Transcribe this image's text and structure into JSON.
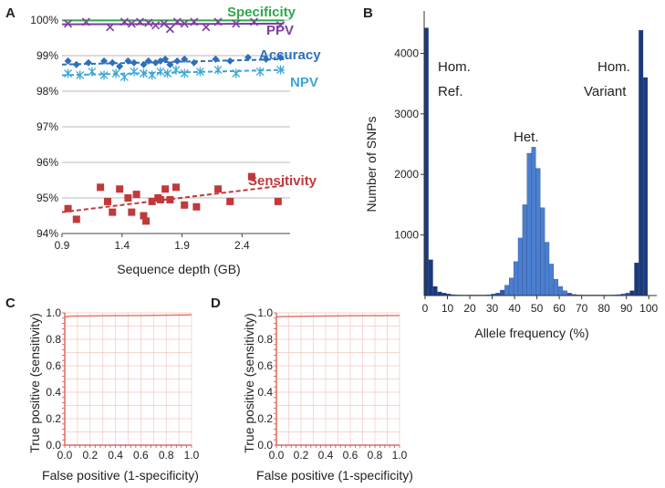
{
  "panel_letters": {
    "A": "A",
    "B": "B",
    "C": "C",
    "D": "D"
  },
  "colors": {
    "specificity": "#2ea84a",
    "ppv": "#7b3f9e",
    "accuracy": "#2f6fba",
    "npv": "#3ba7d6",
    "sensitivity": "#c0393b",
    "hist_dark": "#1b3a7a",
    "hist_mid": "#2c5aa8",
    "hist_light": "#4a7fd0",
    "roc": "#e07060",
    "roc_grid": "#f0c8c0",
    "roc_axis": "#d05050"
  },
  "chart_data": [
    {
      "id": "A",
      "type": "scatter",
      "xlabel": "Sequence depth (GB)",
      "ylabel": "",
      "xlim": [
        0.9,
        2.8
      ],
      "ylim": [
        94,
        100
      ],
      "xticks": [
        "0.9",
        "1.4",
        "1.9",
        "2.4"
      ],
      "yticks": [
        "94%",
        "95%",
        "96%",
        "97%",
        "98%",
        "99%",
        "100%"
      ],
      "series": [
        {
          "name": "Specificity",
          "marker": "none",
          "trend": [
            [
              0.9,
              99.99
            ],
            [
              2.75,
              99.99
            ]
          ],
          "x": [],
          "y": []
        },
        {
          "name": "PPV",
          "marker": "x",
          "trend": [
            [
              0.9,
              99.88
            ],
            [
              2.75,
              99.9
            ]
          ],
          "x": [
            0.95,
            1.1,
            1.3,
            1.42,
            1.48,
            1.55,
            1.62,
            1.68,
            1.75,
            1.8,
            1.86,
            1.92,
            2.0,
            2.1,
            2.2,
            2.35,
            2.5,
            2.72
          ],
          "y": [
            99.9,
            99.95,
            99.8,
            99.95,
            99.9,
            99.95,
            99.92,
            99.85,
            99.9,
            99.75,
            99.95,
            99.9,
            99.95,
            99.8,
            99.95,
            99.9,
            99.95,
            99.85
          ]
        },
        {
          "name": "Accuracy",
          "marker": "diamond",
          "trend": [
            [
              0.9,
              98.75
            ],
            [
              2.75,
              98.9
            ]
          ],
          "x": [
            0.95,
            1.02,
            1.12,
            1.25,
            1.32,
            1.38,
            1.45,
            1.5,
            1.58,
            1.62,
            1.68,
            1.72,
            1.76,
            1.8,
            1.86,
            1.92,
            2.0,
            2.18,
            2.3,
            2.45,
            2.6,
            2.72
          ],
          "y": [
            98.85,
            98.75,
            98.8,
            98.85,
            98.8,
            98.7,
            98.85,
            98.8,
            98.75,
            98.85,
            98.8,
            98.85,
            98.9,
            98.75,
            98.85,
            98.9,
            98.8,
            98.9,
            98.85,
            98.95,
            98.9,
            98.95
          ]
        },
        {
          "name": "NPV",
          "marker": "star",
          "trend": [
            [
              0.9,
              98.45
            ],
            [
              2.75,
              98.6
            ]
          ],
          "x": [
            0.95,
            1.05,
            1.15,
            1.25,
            1.35,
            1.42,
            1.5,
            1.58,
            1.65,
            1.72,
            1.78,
            1.85,
            1.92,
            2.05,
            2.2,
            2.35,
            2.55,
            2.72
          ],
          "y": [
            98.5,
            98.45,
            98.55,
            98.45,
            98.5,
            98.4,
            98.55,
            98.5,
            98.45,
            98.55,
            98.5,
            98.6,
            98.5,
            98.55,
            98.6,
            98.5,
            98.55,
            98.6
          ]
        },
        {
          "name": "Sensitivity",
          "marker": "square",
          "trend": [
            [
              0.9,
              94.6
            ],
            [
              2.75,
              95.35
            ]
          ],
          "x": [
            0.95,
            1.02,
            1.22,
            1.28,
            1.32,
            1.38,
            1.45,
            1.48,
            1.52,
            1.58,
            1.6,
            1.65,
            1.7,
            1.72,
            1.76,
            1.8,
            1.85,
            1.92,
            2.02,
            2.2,
            2.3,
            2.48,
            2.7
          ],
          "y": [
            94.7,
            94.4,
            95.3,
            94.9,
            94.6,
            95.25,
            95.0,
            94.6,
            95.1,
            94.5,
            94.35,
            94.9,
            95.0,
            94.95,
            95.25,
            94.95,
            95.3,
            94.8,
            94.75,
            95.25,
            94.9,
            95.6,
            94.9
          ]
        }
      ],
      "labels": {
        "specificity": "Specificity",
        "ppv": "PPV",
        "accuracy": "Accuracy",
        "npv": "NPV",
        "sensitivity": "Sensitivity"
      }
    },
    {
      "id": "B",
      "type": "bar",
      "xlabel": "Allele frequency (%)",
      "ylabel": "Number of SNPs",
      "xlim": [
        0,
        104
      ],
      "ylim": [
        0,
        4700
      ],
      "yticks": [
        1000,
        2000,
        3000,
        4000
      ],
      "xticks": [
        "0",
        "10",
        "20",
        "30",
        "40",
        "50",
        "60",
        "70",
        "80",
        "90",
        "100"
      ],
      "bin_width": 2,
      "bins": [
        {
          "x": 0,
          "value": 4420
        },
        {
          "x": 2,
          "value": 590
        },
        {
          "x": 4,
          "value": 150
        },
        {
          "x": 6,
          "value": 60
        },
        {
          "x": 8,
          "value": 40
        },
        {
          "x": 10,
          "value": 25
        },
        {
          "x": 12,
          "value": 15
        },
        {
          "x": 14,
          "value": 10
        },
        {
          "x": 16,
          "value": 8
        },
        {
          "x": 18,
          "value": 6
        },
        {
          "x": 20,
          "value": 5
        },
        {
          "x": 22,
          "value": 5
        },
        {
          "x": 24,
          "value": 6
        },
        {
          "x": 26,
          "value": 8
        },
        {
          "x": 28,
          "value": 12
        },
        {
          "x": 30,
          "value": 25
        },
        {
          "x": 32,
          "value": 40
        },
        {
          "x": 34,
          "value": 90
        },
        {
          "x": 36,
          "value": 170
        },
        {
          "x": 38,
          "value": 290
        },
        {
          "x": 40,
          "value": 560
        },
        {
          "x": 42,
          "value": 950
        },
        {
          "x": 44,
          "value": 1500
        },
        {
          "x": 46,
          "value": 2350
        },
        {
          "x": 48,
          "value": 2450
        },
        {
          "x": 50,
          "value": 2100
        },
        {
          "x": 52,
          "value": 1450
        },
        {
          "x": 54,
          "value": 880
        },
        {
          "x": 56,
          "value": 520
        },
        {
          "x": 58,
          "value": 270
        },
        {
          "x": 60,
          "value": 150
        },
        {
          "x": 62,
          "value": 80
        },
        {
          "x": 64,
          "value": 40
        },
        {
          "x": 66,
          "value": 20
        },
        {
          "x": 68,
          "value": 12
        },
        {
          "x": 70,
          "value": 8
        },
        {
          "x": 72,
          "value": 5
        },
        {
          "x": 74,
          "value": 5
        },
        {
          "x": 76,
          "value": 5
        },
        {
          "x": 78,
          "value": 6
        },
        {
          "x": 80,
          "value": 6
        },
        {
          "x": 82,
          "value": 8
        },
        {
          "x": 84,
          "value": 10
        },
        {
          "x": 86,
          "value": 15
        },
        {
          "x": 88,
          "value": 25
        },
        {
          "x": 90,
          "value": 40
        },
        {
          "x": 92,
          "value": 80
        },
        {
          "x": 94,
          "value": 540
        },
        {
          "x": 96,
          "value": 4380
        },
        {
          "x": 98,
          "value": 3600
        }
      ],
      "annotations": {
        "hom_ref_1": "Hom.",
        "hom_ref_2": "Ref.",
        "het": "Het.",
        "hom_var_1": "Hom.",
        "hom_var_2": "Variant"
      }
    },
    {
      "id": "C",
      "type": "line",
      "xlabel": "False positive (1-specificity)",
      "ylabel": "True positive (sensitivity)",
      "xlim": [
        0,
        1
      ],
      "ylim": [
        0,
        1
      ],
      "xticks": [
        "0.0",
        "0.2",
        "0.4",
        "0.6",
        "0.8",
        "1.0"
      ],
      "yticks": [
        "0.0",
        "0.2",
        "0.4",
        "0.6",
        "0.8",
        "1.0"
      ],
      "x": [
        0,
        0.0,
        0.05,
        0.3,
        0.6,
        1.0
      ],
      "y": [
        0,
        0.97,
        0.975,
        0.978,
        0.98,
        0.985
      ]
    },
    {
      "id": "D",
      "type": "line",
      "xlabel": "False positive (1-specificity)",
      "ylabel": "True positive (sensitivity)",
      "xlim": [
        0,
        1
      ],
      "ylim": [
        0,
        1
      ],
      "xticks": [
        "0.0",
        "0.2",
        "0.4",
        "0.6",
        "0.8",
        "1.0"
      ],
      "yticks": [
        "0.0",
        "0.2",
        "0.4",
        "0.6",
        "0.8",
        "1.0"
      ],
      "x": [
        0,
        0.0,
        0.05,
        0.3,
        0.6,
        1.0
      ],
      "y": [
        0,
        0.97,
        0.972,
        0.975,
        0.978,
        0.98
      ]
    }
  ]
}
